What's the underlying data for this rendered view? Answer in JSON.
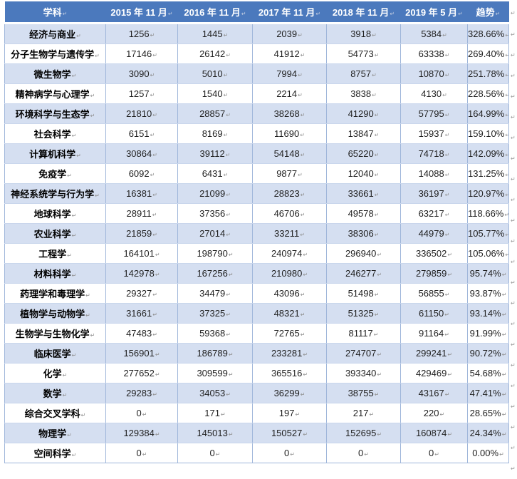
{
  "chart_data": {
    "type": "table",
    "columns": [
      "学科",
      "2015 年 11 月",
      "2016 年 11 月",
      "2017 年 11 月",
      "2018 年 11 月",
      "2019 年 5 月",
      "趋势"
    ],
    "rows": [
      {
        "subject": "经济与商业",
        "values": [
          "1256",
          "1445",
          "2039",
          "3918",
          "5384"
        ],
        "trend": "328.66%"
      },
      {
        "subject": "分子生物学与遗传学",
        "values": [
          "17146",
          "26142",
          "41912",
          "54773",
          "63338"
        ],
        "trend": "269.40%"
      },
      {
        "subject": "微生物学",
        "values": [
          "3090",
          "5010",
          "7994",
          "8757",
          "10870"
        ],
        "trend": "251.78%"
      },
      {
        "subject": "精神病学与心理学",
        "values": [
          "1257",
          "1540",
          "2214",
          "3838",
          "4130"
        ],
        "trend": "228.56%"
      },
      {
        "subject": "环境科学与生态学",
        "values": [
          "21810",
          "28857",
          "38268",
          "41290",
          "57795"
        ],
        "trend": "164.99%"
      },
      {
        "subject": "社会科学",
        "values": [
          "6151",
          "8169",
          "11690",
          "13847",
          "15937"
        ],
        "trend": "159.10%"
      },
      {
        "subject": "计算机科学",
        "values": [
          "30864",
          "39112",
          "54148",
          "65220",
          "74718"
        ],
        "trend": "142.09%"
      },
      {
        "subject": "免疫学",
        "values": [
          "6092",
          "6431",
          "9877",
          "12040",
          "14088"
        ],
        "trend": "131.25%"
      },
      {
        "subject": "神经系统学与行为学",
        "values": [
          "16381",
          "21099",
          "28823",
          "33661",
          "36197"
        ],
        "trend": "120.97%"
      },
      {
        "subject": "地球科学",
        "values": [
          "28911",
          "37356",
          "46706",
          "49578",
          "63217"
        ],
        "trend": "118.66%"
      },
      {
        "subject": "农业科学",
        "values": [
          "21859",
          "27014",
          "33211",
          "38306",
          "44979"
        ],
        "trend": "105.77%"
      },
      {
        "subject": "工程学",
        "values": [
          "164101",
          "198790",
          "240974",
          "296940",
          "336502"
        ],
        "trend": "105.06%"
      },
      {
        "subject": "材料科学",
        "values": [
          "142978",
          "167256",
          "210980",
          "246277",
          "279859"
        ],
        "trend": "95.74%"
      },
      {
        "subject": "药理学和毒理学",
        "values": [
          "29327",
          "34479",
          "43096",
          "51498",
          "56855"
        ],
        "trend": "93.87%"
      },
      {
        "subject": "植物学与动物学",
        "values": [
          "31661",
          "37325",
          "48321",
          "51325",
          "61150"
        ],
        "trend": "93.14%"
      },
      {
        "subject": "生物学与生物化学",
        "values": [
          "47483",
          "59368",
          "72765",
          "81117",
          "91164"
        ],
        "trend": "91.99%"
      },
      {
        "subject": "临床医学",
        "values": [
          "156901",
          "186789",
          "233281",
          "274707",
          "299241"
        ],
        "trend": "90.72%"
      },
      {
        "subject": "化学",
        "values": [
          "277652",
          "309599",
          "365516",
          "393340",
          "429469"
        ],
        "trend": "54.68%"
      },
      {
        "subject": "数学",
        "values": [
          "29283",
          "34053",
          "36299",
          "38755",
          "43167"
        ],
        "trend": "47.41%"
      },
      {
        "subject": "综合交叉学科",
        "values": [
          "0",
          "171",
          "197",
          "217",
          "220"
        ],
        "trend": "28.65%"
      },
      {
        "subject": "物理学",
        "values": [
          "129384",
          "145013",
          "150527",
          "152695",
          "160874"
        ],
        "trend": "24.34%"
      },
      {
        "subject": "空间科学",
        "values": [
          "0",
          "0",
          "0",
          "0",
          "0"
        ],
        "trend": "0.00%"
      }
    ]
  },
  "marks": {
    "cell_end": "↵",
    "row_end": "↵"
  },
  "colors": {
    "header_bg": "#4b79bd",
    "header_text": "#ffffff",
    "band_row_bg": "#d5dff1",
    "plain_row_bg": "#ffffff",
    "vertical_border": "#9fb6da",
    "horizontal_border": "#c9d6ec"
  }
}
